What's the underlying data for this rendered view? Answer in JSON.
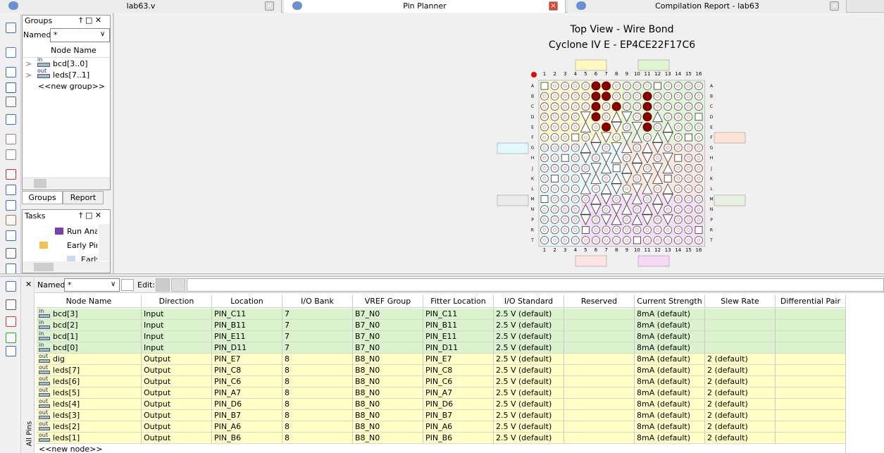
{
  "tabs": [
    "lab63.v",
    "Pin Planner",
    "Compilation Report - lab63"
  ],
  "groups": {
    "title": "Groups",
    "named_label": "Named:",
    "filter": "*",
    "column": "Node Name",
    "items": [
      {
        "badge": "in",
        "label": "bcd[3..0]"
      },
      {
        "badge": "out",
        "label": "leds[7..1]"
      }
    ],
    "new_item": "<<new group>>",
    "tabs": [
      "Groups",
      "Report"
    ]
  },
  "tasks": {
    "title": "Tasks",
    "items": [
      "Run Anal",
      "Early Pin",
      "Early"
    ]
  },
  "package": {
    "title": "Top View - Wire Bond",
    "subtitle": "Cyclone IV E - EP4CE22F17C6",
    "columns": [
      "1",
      "2",
      "3",
      "4",
      "5",
      "6",
      "7",
      "8",
      "9",
      "10",
      "11",
      "12",
      "13",
      "14",
      "15",
      "16"
    ],
    "rows": [
      "A",
      "B",
      "C",
      "D",
      "E",
      "F",
      "G",
      "H",
      "J",
      "K",
      "L",
      "M",
      "N",
      "P",
      "R",
      "T"
    ]
  },
  "pin_table": {
    "named_label": "Named:",
    "filter": "*",
    "edit_label": "Edit:",
    "side_label": "All Pins",
    "columns": [
      "Node Name",
      "Direction",
      "Location",
      "I/O Bank",
      "VREF Group",
      "Fitter Location",
      "I/O Standard",
      "Reserved",
      "Current Strength",
      "Slew Rate",
      "Differential Pair"
    ],
    "rows": [
      {
        "badge": "in",
        "cells": [
          "bcd[3]",
          "Input",
          "PIN_C11",
          "7",
          "B7_N0",
          "PIN_C11",
          "2.5 V (default)",
          null,
          "8mA (default)",
          null,
          null
        ]
      },
      {
        "badge": "in",
        "cells": [
          "bcd[2]",
          "Input",
          "PIN_B11",
          "7",
          "B7_N0",
          "PIN_B11",
          "2.5 V (default)",
          null,
          "8mA (default)",
          null,
          null
        ]
      },
      {
        "badge": "in",
        "cells": [
          "bcd[1]",
          "Input",
          "PIN_E11",
          "7",
          "B7_N0",
          "PIN_E11",
          "2.5 V (default)",
          null,
          "8mA (default)",
          null,
          null
        ]
      },
      {
        "badge": "in",
        "cells": [
          "bcd[0]",
          "Input",
          "PIN_D11",
          "7",
          "B7_N0",
          "PIN_D11",
          "2.5 V (default)",
          null,
          "8mA (default)",
          null,
          null
        ]
      },
      {
        "badge": "out",
        "cells": [
          "dig",
          "Output",
          "PIN_E7",
          "8",
          "B8_N0",
          "PIN_E7",
          "2.5 V (default)",
          null,
          "8mA (default)",
          "2 (default)",
          null
        ]
      },
      {
        "badge": "out",
        "cells": [
          "leds[7]",
          "Output",
          "PIN_C8",
          "8",
          "B8_N0",
          "PIN_C8",
          "2.5 V (default)",
          null,
          "8mA (default)",
          "2 (default)",
          null
        ]
      },
      {
        "badge": "out",
        "cells": [
          "leds[6]",
          "Output",
          "PIN_C6",
          "8",
          "B8_N0",
          "PIN_C6",
          "2.5 V (default)",
          null,
          "8mA (default)",
          "2 (default)",
          null
        ]
      },
      {
        "badge": "out",
        "cells": [
          "leds[5]",
          "Output",
          "PIN_A7",
          "8",
          "B8_N0",
          "PIN_A7",
          "2.5 V (default)",
          null,
          "8mA (default)",
          "2 (default)",
          null
        ]
      },
      {
        "badge": "out",
        "cells": [
          "leds[4]",
          "Output",
          "PIN_D6",
          "8",
          "B8_N0",
          "PIN_D6",
          "2.5 V (default)",
          null,
          "8mA (default)",
          "2 (default)",
          null
        ]
      },
      {
        "badge": "out",
        "cells": [
          "leds[3]",
          "Output",
          "PIN_B7",
          "8",
          "B8_N0",
          "PIN_B7",
          "2.5 V (default)",
          null,
          "8mA (default)",
          "2 (default)",
          null
        ]
      },
      {
        "badge": "out",
        "cells": [
          "leds[2]",
          "Output",
          "PIN_A6",
          "8",
          "B8_N0",
          "PIN_A6",
          "2.5 V (default)",
          null,
          "8mA (default)",
          "2 (default)",
          null
        ]
      },
      {
        "badge": "out",
        "cells": [
          "leds[1]",
          "Output",
          "PIN_B6",
          "8",
          "B8_N0",
          "PIN_B6",
          "2.5 V (default)",
          null,
          "8mA (default)",
          "2 (default)",
          null
        ]
      }
    ],
    "new_item": "<<new node>>"
  }
}
